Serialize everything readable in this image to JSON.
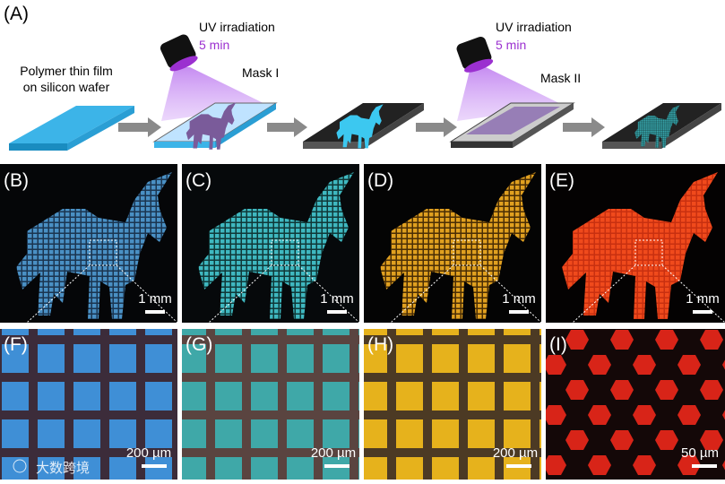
{
  "panel_labels": [
    "(A)",
    "(B)",
    "(C)",
    "(D)",
    "(E)",
    "(F)",
    "(G)",
    "(H)",
    "(I)"
  ],
  "schematic": {
    "film_label": [
      "Polymer thin film",
      "on silicon wafer"
    ],
    "uv_label": "UV irradiation",
    "time_label": "5 min",
    "mask_1": "Mask I",
    "mask_2": "Mask II"
  },
  "scale_bars": {
    "middle_row": "1 mm",
    "bottom_row": [
      "200 µm",
      "200 µm",
      "200 µm",
      "50 µm"
    ]
  },
  "watermark": "大数跨境"
}
